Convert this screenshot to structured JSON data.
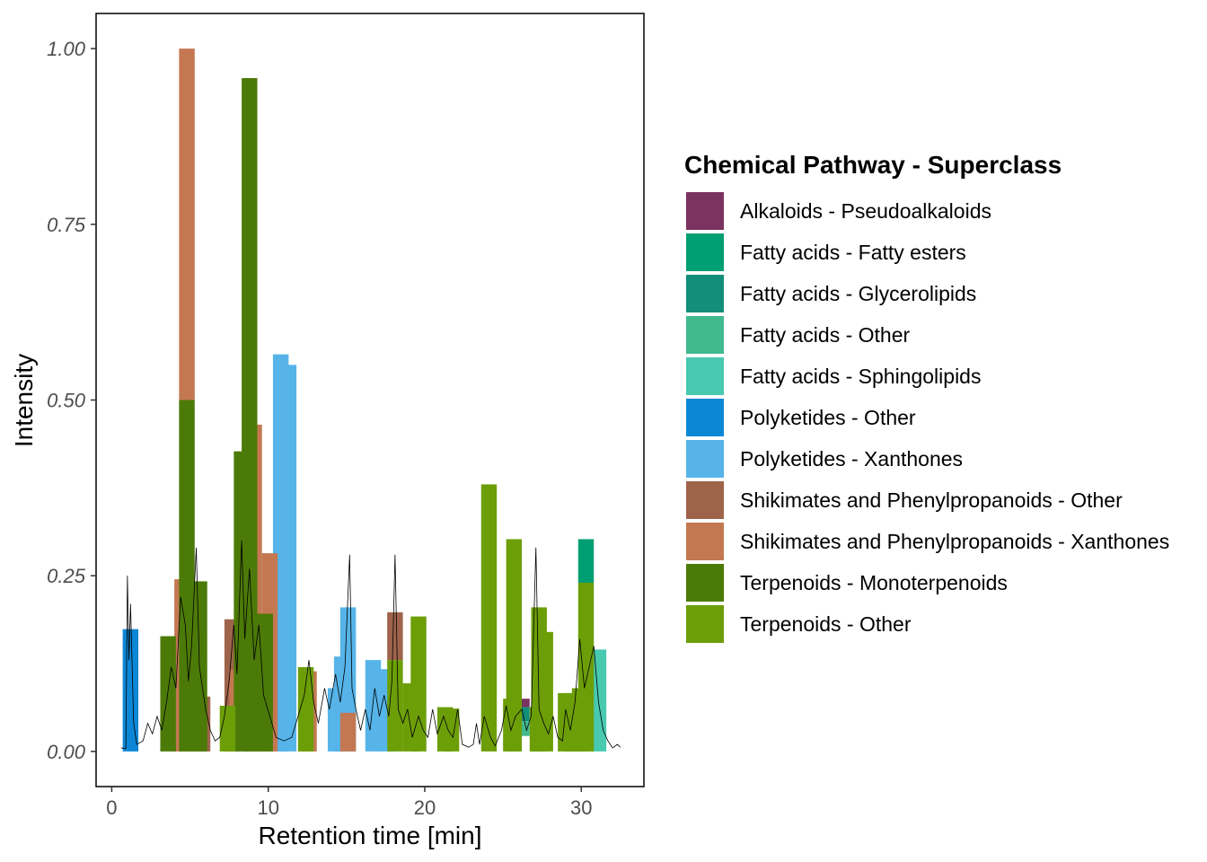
{
  "chart_data": {
    "type": "bar",
    "xlabel": "Retention time [min]",
    "ylabel": "Intensity",
    "xlim": [
      -1,
      34
    ],
    "ylim": [
      -0.05,
      1.05
    ],
    "x_ticks": [
      0,
      10,
      20,
      30
    ],
    "x_tick_labels": [
      "0",
      "10",
      "20",
      "30"
    ],
    "y_ticks": [
      0,
      0.25,
      0.5,
      0.75,
      1.0
    ],
    "y_tick_labels": [
      "0.00",
      "0.25",
      "0.50",
      "0.75",
      "1.00"
    ],
    "grid": false,
    "legend_position": "right",
    "legend_title": "Chemical Pathway - Superclass",
    "series": [
      {
        "name": "Alkaloids - Pseudoalkaloids",
        "color": "#7B3360",
        "bars": [
          {
            "xmin": 25.7,
            "xmax": 26.7,
            "ymin": 0.063,
            "ymax": 0.075
          }
        ]
      },
      {
        "name": "Fatty acids - Fatty esters",
        "color": "#009E73",
        "bars": [
          {
            "xmin": 29.8,
            "xmax": 30.8,
            "ymin": 0.24,
            "ymax": 0.302
          }
        ]
      },
      {
        "name": "Fatty acids - Glycerolipids",
        "color": "#138E7A",
        "bars": [
          {
            "xmin": 25.7,
            "xmax": 26.7,
            "ymin": 0.043,
            "ymax": 0.063
          }
        ]
      },
      {
        "name": "Fatty acids - Other",
        "color": "#41B98F",
        "bars": [
          {
            "xmin": 25.7,
            "xmax": 26.7,
            "ymin": 0.022,
            "ymax": 0.043
          }
        ]
      },
      {
        "name": "Fatty acids - Sphingolipids",
        "color": "#48C9B0",
        "bars": [
          {
            "xmin": 30.6,
            "xmax": 31.6,
            "ymin": 0,
            "ymax": 0.145
          }
        ]
      },
      {
        "name": "Polyketides - Other",
        "color": "#0C87D6",
        "bars": [
          {
            "xmin": 0.7,
            "xmax": 1.7,
            "ymin": 0,
            "ymax": 0.174
          }
        ]
      },
      {
        "name": "Polyketides - Xanthones",
        "color": "#56B4E9",
        "bars": [
          {
            "xmin": 10.3,
            "xmax": 11.3,
            "ymin": 0,
            "ymax": 0.565
          },
          {
            "xmin": 10.8,
            "xmax": 11.8,
            "ymin": 0,
            "ymax": 0.55
          },
          {
            "xmin": 13.8,
            "xmax": 14.8,
            "ymin": 0,
            "ymax": 0.09
          },
          {
            "xmin": 14.2,
            "xmax": 15.2,
            "ymin": 0,
            "ymax": 0.135
          },
          {
            "xmin": 14.6,
            "xmax": 15.6,
            "ymin": 0,
            "ymax": 0.205
          },
          {
            "xmin": 16.2,
            "xmax": 17.2,
            "ymin": 0,
            "ymax": 0.13
          },
          {
            "xmin": 17.1,
            "xmax": 18.1,
            "ymin": 0,
            "ymax": 0.117
          }
        ]
      },
      {
        "name": "Shikimates and Phenylpropanoids - Other",
        "color": "#9E644B",
        "bars": [
          {
            "xmin": 5.3,
            "xmax": 6.3,
            "ymin": 0,
            "ymax": 0.078
          },
          {
            "xmin": 7.2,
            "xmax": 8.2,
            "ymin": 0,
            "ymax": 0.188
          },
          {
            "xmin": 17.6,
            "xmax": 18.6,
            "ymin": 0.13,
            "ymax": 0.198
          }
        ]
      },
      {
        "name": "Shikimates and Phenylpropanoids - Xanthones",
        "color": "#C47852",
        "bars": [
          {
            "xmin": 4.0,
            "xmax": 5.0,
            "ymin": 0,
            "ymax": 0.245
          },
          {
            "xmin": 4.3,
            "xmax": 5.3,
            "ymin": 0.5,
            "ymax": 1.0
          },
          {
            "xmin": 7.5,
            "xmax": 8.5,
            "ymin": 0.058,
            "ymax": 0.116
          },
          {
            "xmin": 8.6,
            "xmax": 9.6,
            "ymin": 0,
            "ymax": 0.465
          },
          {
            "xmin": 9.6,
            "xmax": 10.6,
            "ymin": 0,
            "ymax": 0.282
          },
          {
            "xmin": 12.1,
            "xmax": 13.1,
            "ymin": 0,
            "ymax": 0.114
          },
          {
            "xmin": 14.6,
            "xmax": 15.6,
            "ymin": 0,
            "ymax": 0.055
          }
        ]
      },
      {
        "name": "Terpenoids - Monoterpenoids",
        "color": "#4C7A08",
        "bars": [
          {
            "xmin": 3.1,
            "xmax": 4.1,
            "ymin": 0,
            "ymax": 0.164
          },
          {
            "xmin": 4.3,
            "xmax": 5.3,
            "ymin": 0,
            "ymax": 0.5
          },
          {
            "xmin": 5.1,
            "xmax": 6.1,
            "ymin": 0,
            "ymax": 0.242
          },
          {
            "xmin": 7.8,
            "xmax": 8.8,
            "ymin": 0,
            "ymax": 0.427
          },
          {
            "xmin": 8.3,
            "xmax": 9.3,
            "ymin": 0,
            "ymax": 0.958
          },
          {
            "xmin": 9.3,
            "xmax": 10.3,
            "ymin": 0,
            "ymax": 0.196
          }
        ]
      },
      {
        "name": "Terpenoids - Other",
        "color": "#6C9E08",
        "bars": [
          {
            "xmin": 6.9,
            "xmax": 7.9,
            "ymin": 0,
            "ymax": 0.065
          },
          {
            "xmin": 11.9,
            "xmax": 12.9,
            "ymin": 0,
            "ymax": 0.12
          },
          {
            "xmin": 17.6,
            "xmax": 18.6,
            "ymin": 0,
            "ymax": 0.13
          },
          {
            "xmin": 18.6,
            "xmax": 19.6,
            "ymin": 0,
            "ymax": 0.097
          },
          {
            "xmin": 19.1,
            "xmax": 20.1,
            "ymin": 0,
            "ymax": 0.192
          },
          {
            "xmin": 20.8,
            "xmax": 21.8,
            "ymin": 0,
            "ymax": 0.063
          },
          {
            "xmin": 21.2,
            "xmax": 22.2,
            "ymin": 0,
            "ymax": 0.061
          },
          {
            "xmin": 23.6,
            "xmax": 24.6,
            "ymin": 0,
            "ymax": 0.38
          },
          {
            "xmin": 25.0,
            "xmax": 26.0,
            "ymin": 0,
            "ymax": 0.075
          },
          {
            "xmin": 25.2,
            "xmax": 26.2,
            "ymin": 0,
            "ymax": 0.302
          },
          {
            "xmin": 26.7,
            "xmax": 27.7,
            "ymin": 0,
            "ymax": 0.063
          },
          {
            "xmin": 26.8,
            "xmax": 27.8,
            "ymin": 0,
            "ymax": 0.205
          },
          {
            "xmin": 27.2,
            "xmax": 28.2,
            "ymin": 0,
            "ymax": 0.17
          },
          {
            "xmin": 28.5,
            "xmax": 29.5,
            "ymin": 0,
            "ymax": 0.083
          },
          {
            "xmin": 28.9,
            "xmax": 29.9,
            "ymin": 0,
            "ymax": 0.083
          },
          {
            "xmin": 29.4,
            "xmax": 30.4,
            "ymin": 0,
            "ymax": 0.09
          },
          {
            "xmin": 29.8,
            "xmax": 30.8,
            "ymin": 0,
            "ymax": 0.24
          }
        ]
      }
    ],
    "chromatogram": {
      "color": "#000000",
      "points": [
        [
          0.6,
          0.005
        ],
        [
          0.9,
          0.004
        ],
        [
          1.0,
          0.25
        ],
        [
          1.1,
          0.13
        ],
        [
          1.2,
          0.21
        ],
        [
          1.4,
          0.04
        ],
        [
          1.6,
          0.01
        ],
        [
          2.0,
          0.015
        ],
        [
          2.3,
          0.04
        ],
        [
          2.6,
          0.025
        ],
        [
          2.9,
          0.05
        ],
        [
          3.2,
          0.03
        ],
        [
          3.5,
          0.07
        ],
        [
          3.8,
          0.12
        ],
        [
          4.1,
          0.09
        ],
        [
          4.4,
          0.22
        ],
        [
          4.7,
          0.18
        ],
        [
          4.9,
          0.1
        ],
        [
          5.1,
          0.15
        ],
        [
          5.4,
          0.29
        ],
        [
          5.6,
          0.12
        ],
        [
          6.0,
          0.06
        ],
        [
          6.3,
          0.03
        ],
        [
          6.6,
          0.015
        ],
        [
          6.9,
          0.02
        ],
        [
          7.2,
          0.05
        ],
        [
          7.5,
          0.1
        ],
        [
          7.8,
          0.18
        ],
        [
          8.0,
          0.11
        ],
        [
          8.3,
          0.3
        ],
        [
          8.5,
          0.16
        ],
        [
          8.8,
          0.26
        ],
        [
          9.1,
          0.13
        ],
        [
          9.4,
          0.18
        ],
        [
          9.7,
          0.08
        ],
        [
          10.1,
          0.05
        ],
        [
          10.5,
          0.02
        ],
        [
          11.0,
          0.015
        ],
        [
          11.5,
          0.02
        ],
        [
          11.9,
          0.05
        ],
        [
          12.3,
          0.08
        ],
        [
          12.6,
          0.13
        ],
        [
          12.9,
          0.07
        ],
        [
          13.2,
          0.04
        ],
        [
          13.6,
          0.09
        ],
        [
          13.9,
          0.06
        ],
        [
          14.3,
          0.11
        ],
        [
          14.6,
          0.07
        ],
        [
          14.9,
          0.12
        ],
        [
          15.2,
          0.28
        ],
        [
          15.35,
          0.09
        ],
        [
          15.6,
          0.06
        ],
        [
          15.9,
          0.03
        ],
        [
          16.2,
          0.06
        ],
        [
          16.5,
          0.03
        ],
        [
          16.8,
          0.09
        ],
        [
          17.1,
          0.05
        ],
        [
          17.4,
          0.08
        ],
        [
          17.7,
          0.05
        ],
        [
          17.9,
          0.1
        ],
        [
          18.1,
          0.28
        ],
        [
          18.3,
          0.06
        ],
        [
          18.6,
          0.04
        ],
        [
          18.9,
          0.06
        ],
        [
          19.2,
          0.02
        ],
        [
          19.6,
          0.05
        ],
        [
          19.9,
          0.03
        ],
        [
          20.2,
          0.02
        ],
        [
          20.5,
          0.06
        ],
        [
          20.8,
          0.025
        ],
        [
          21.2,
          0.05
        ],
        [
          21.5,
          0.03
        ],
        [
          21.8,
          0.02
        ],
        [
          22.1,
          0.06
        ],
        [
          22.4,
          0.01
        ],
        [
          22.8,
          0.006
        ],
        [
          23.1,
          0.01
        ],
        [
          23.3,
          0.04
        ],
        [
          23.5,
          0.01
        ],
        [
          23.8,
          0.05
        ],
        [
          24.2,
          0.02
        ],
        [
          24.5,
          0.008
        ],
        [
          24.9,
          0.03
        ],
        [
          25.2,
          0.065
        ],
        [
          25.5,
          0.03
        ],
        [
          25.8,
          0.05
        ],
        [
          26.2,
          0.06
        ],
        [
          26.5,
          0.03
        ],
        [
          26.8,
          0.05
        ],
        [
          27.1,
          0.29
        ],
        [
          27.3,
          0.06
        ],
        [
          27.6,
          0.04
        ],
        [
          27.9,
          0.025
        ],
        [
          28.2,
          0.05
        ],
        [
          28.5,
          0.02
        ],
        [
          28.8,
          0.015
        ],
        [
          29.0,
          0.06
        ],
        [
          29.3,
          0.03
        ],
        [
          29.6,
          0.07
        ],
        [
          29.9,
          0.16
        ],
        [
          30.2,
          0.09
        ],
        [
          30.5,
          0.12
        ],
        [
          30.8,
          0.15
        ],
        [
          31.1,
          0.07
        ],
        [
          31.4,
          0.03
        ],
        [
          31.7,
          0.015
        ],
        [
          32.0,
          0.005
        ],
        [
          32.3,
          0.01
        ],
        [
          32.5,
          0.006
        ]
      ]
    }
  }
}
